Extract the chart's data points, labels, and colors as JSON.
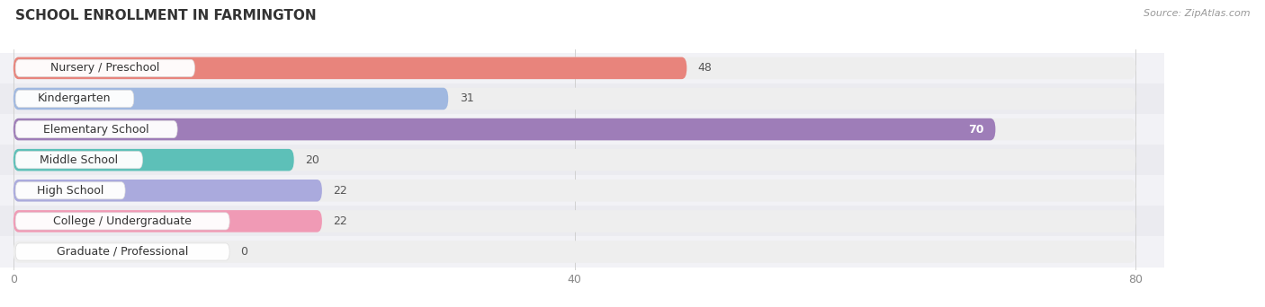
{
  "title": "SCHOOL ENROLLMENT IN FARMINGTON",
  "source": "Source: ZipAtlas.com",
  "categories": [
    "Nursery / Preschool",
    "Kindergarten",
    "Elementary School",
    "Middle School",
    "High School",
    "College / Undergraduate",
    "Graduate / Professional"
  ],
  "values": [
    48,
    31,
    70,
    20,
    22,
    22,
    0
  ],
  "bar_colors": [
    "#E8847C",
    "#A0B8E0",
    "#9E7DB8",
    "#5DC0B8",
    "#AAAADD",
    "#F09AB5",
    "#F5CFA0"
  ],
  "value_inside": [
    false,
    false,
    true,
    false,
    false,
    false,
    false
  ],
  "xlim_max": 80,
  "xticks": [
    0,
    40,
    80
  ],
  "bg_color": "#ffffff",
  "bar_bg_color": "#EEEEEE",
  "row_bg_color": "#F5F5F8",
  "title_fontsize": 11,
  "label_fontsize": 9,
  "value_fontsize": 9
}
